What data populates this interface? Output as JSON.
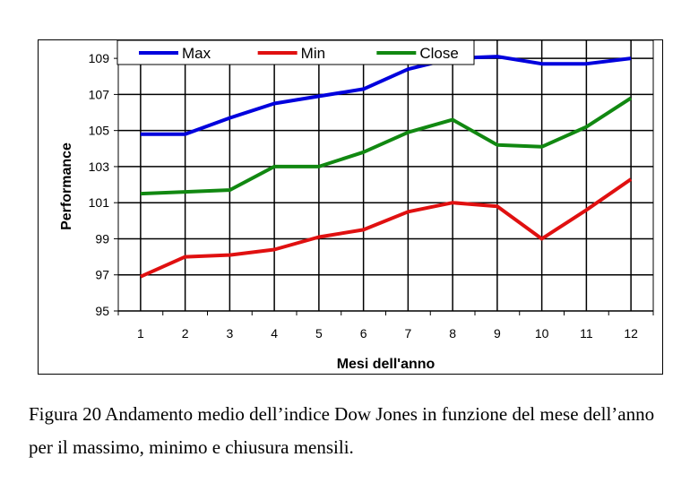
{
  "chart_data": {
    "type": "line",
    "xlabel": "Mesi dell'anno",
    "ylabel": "Performance",
    "x": [
      1,
      2,
      3,
      4,
      5,
      6,
      7,
      8,
      9,
      10,
      11,
      12
    ],
    "ylim": [
      95,
      110
    ],
    "yticks": [
      95,
      97,
      99,
      101,
      103,
      105,
      107,
      109
    ],
    "grid": true,
    "legend": "top",
    "series": [
      {
        "name": "Max",
        "color": "#0000dd",
        "values": [
          104.8,
          104.8,
          105.7,
          106.5,
          106.9,
          107.3,
          108.4,
          109.0,
          109.1,
          108.7,
          108.7,
          109.0
        ]
      },
      {
        "name": "Min",
        "color": "#e01010",
        "values": [
          96.9,
          98.0,
          98.1,
          98.4,
          99.1,
          99.5,
          100.5,
          101.0,
          100.8,
          99.0,
          100.6,
          102.3
        ]
      },
      {
        "name": "Close",
        "color": "#118811",
        "values": [
          101.5,
          101.6,
          101.7,
          103.0,
          103.0,
          103.8,
          104.9,
          105.6,
          104.2,
          104.1,
          105.2,
          106.8
        ]
      }
    ]
  },
  "caption": "Figura 20 Andamento medio dell’indice Dow Jones in funzione del mese dell’anno per il massimo, minimo e chiusura mensili."
}
